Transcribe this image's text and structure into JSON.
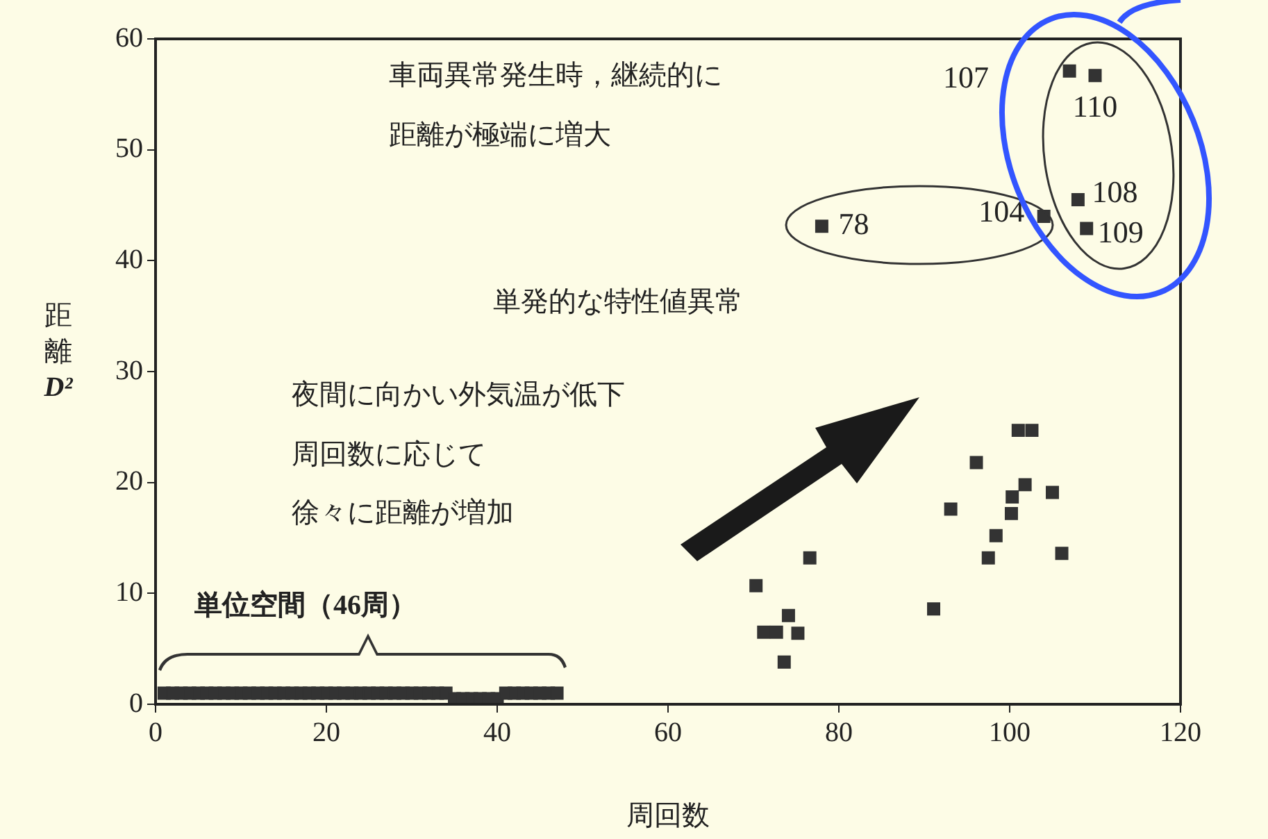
{
  "chart_data": {
    "type": "scatter",
    "xlabel": "周回数",
    "ylabel": "距離D²",
    "xlim": [
      0,
      120
    ],
    "xticks": [
      0,
      20,
      40,
      60,
      80,
      100,
      120
    ],
    "ylim": [
      0,
      60
    ],
    "yticks": [
      0,
      10,
      20,
      30,
      40,
      50,
      60
    ],
    "marker": "square",
    "series": [
      {
        "color": "#333333",
        "x": [
          1,
          2,
          3,
          4,
          5,
          6,
          7,
          8,
          9,
          10,
          11,
          12,
          13,
          14,
          15,
          16,
          17,
          18,
          19,
          20,
          21,
          22,
          23,
          24,
          25,
          26,
          27,
          28,
          29,
          30,
          31,
          32,
          33,
          34,
          35,
          36,
          37,
          38,
          39,
          40,
          41,
          42,
          43,
          44,
          45,
          46,
          47
        ],
        "values": [
          1,
          1,
          1,
          1,
          1,
          1,
          1,
          1,
          1,
          1,
          1,
          1,
          1,
          1,
          1,
          1,
          1,
          1,
          1,
          1,
          1,
          1,
          1,
          1,
          1,
          1,
          1,
          1,
          1,
          1,
          1,
          1,
          1,
          1,
          0.5,
          0.5,
          0.5,
          0.5,
          0.5,
          0.5,
          1,
          1,
          1,
          1,
          1,
          1,
          1
        ]
      },
      {
        "color": "#333333",
        "x": [
          70.3,
          71.2,
          72.7,
          73.6,
          74.1,
          75.2,
          76.6,
          91.1,
          93.1,
          96.1,
          97.5,
          98.4,
          100.2,
          100.3,
          101,
          101.8,
          102.6,
          105,
          106.1,
          78,
          104,
          107,
          108,
          109,
          110
        ],
        "values": [
          10.7,
          6.5,
          6.5,
          3.8,
          8,
          6.4,
          13.2,
          8.6,
          17.6,
          21.8,
          13.2,
          15.2,
          17.2,
          18.7,
          24.7,
          19.8,
          24.7,
          19.1,
          13.6,
          43.1,
          44,
          57.1,
          45.5,
          42.9,
          56.7
        ]
      }
    ],
    "annotations": [
      "車両異常発生時，継続的に",
      "距離が極端に増大",
      "単発的な特性値異常",
      "夜間に向かい外気温が低下",
      "周回数に応じて",
      "徐々に距離が増加",
      "単位空間（46周）",
      {
        "text": "78",
        "x": 78,
        "y": 43.1
      },
      {
        "text": "104",
        "x": 104,
        "y": 44
      },
      {
        "text": "107",
        "x": 107,
        "y": 57.1
      },
      {
        "text": "110",
        "x": 110,
        "y": 56.7
      },
      {
        "text": "108",
        "x": 108,
        "y": 45.5
      },
      {
        "text": "109",
        "x": 109,
        "y": 42.9
      }
    ]
  }
}
